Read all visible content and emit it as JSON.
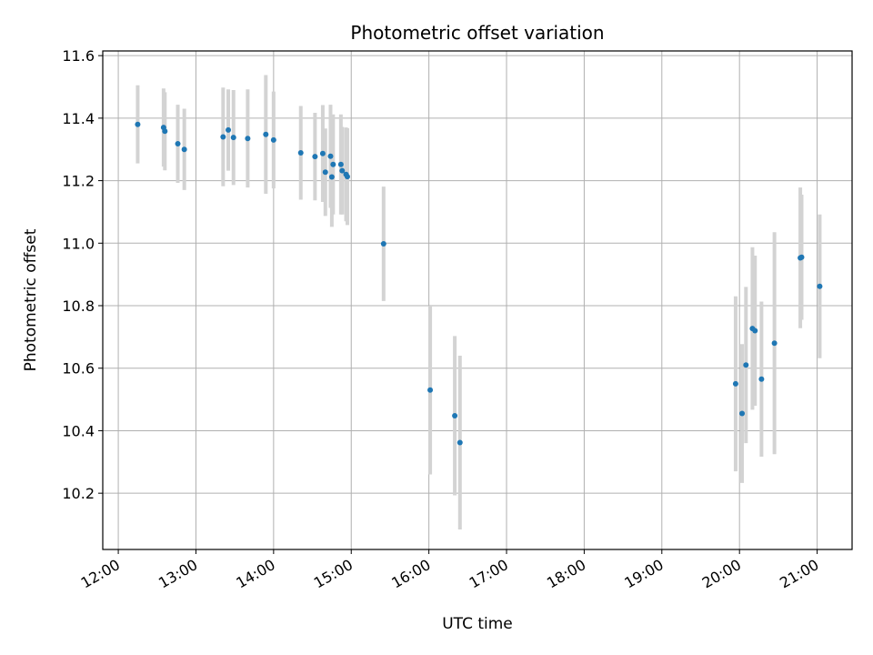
{
  "chart_data": {
    "type": "scatter",
    "title": "Photometric offset variation",
    "xlabel": "UTC time",
    "ylabel": "Photometric offset",
    "grid": true,
    "colors": {
      "point": "#1f77b4",
      "errorbar": "#d3d3d3",
      "grid": "#b0b0b0"
    },
    "xlim": [
      11.8,
      21.45
    ],
    "ylim": [
      10.02,
      11.615
    ],
    "xticks": [
      {
        "value": 12,
        "label": "12:00"
      },
      {
        "value": 13,
        "label": "13:00"
      },
      {
        "value": 14,
        "label": "14:00"
      },
      {
        "value": 15,
        "label": "15:00"
      },
      {
        "value": 16,
        "label": "16:00"
      },
      {
        "value": 17,
        "label": "17:00"
      },
      {
        "value": 18,
        "label": "18:00"
      },
      {
        "value": 19,
        "label": "19:00"
      },
      {
        "value": 20,
        "label": "20:00"
      },
      {
        "value": 21,
        "label": "21:00"
      }
    ],
    "yticks": [
      {
        "value": 10.2,
        "label": "10.2"
      },
      {
        "value": 10.4,
        "label": "10.4"
      },
      {
        "value": 10.6,
        "label": "10.6"
      },
      {
        "value": 10.8,
        "label": "10.8"
      },
      {
        "value": 11.0,
        "label": "11.0"
      },
      {
        "value": 11.2,
        "label": "11.2"
      },
      {
        "value": 11.4,
        "label": "11.4"
      },
      {
        "value": 11.6,
        "label": "11.6"
      }
    ],
    "points": [
      {
        "time": "12:15",
        "y": 11.38,
        "err": 0.125
      },
      {
        "time": "12:35",
        "y": 11.37,
        "err": 0.125
      },
      {
        "time": "12:36",
        "y": 11.358,
        "err": 0.125
      },
      {
        "time": "12:46",
        "y": 11.318,
        "err": 0.125
      },
      {
        "time": "12:51",
        "y": 11.3,
        "err": 0.13
      },
      {
        "time": "13:21",
        "y": 11.34,
        "err": 0.158
      },
      {
        "time": "13:25",
        "y": 11.362,
        "err": 0.13
      },
      {
        "time": "13:29",
        "y": 11.338,
        "err": 0.152
      },
      {
        "time": "13:40",
        "y": 11.335,
        "err": 0.157
      },
      {
        "time": "13:54",
        "y": 11.348,
        "err": 0.19
      },
      {
        "time": "14:00",
        "y": 11.33,
        "err": 0.155
      },
      {
        "time": "14:21",
        "y": 11.289,
        "err": 0.15
      },
      {
        "time": "14:32",
        "y": 11.277,
        "err": 0.14
      },
      {
        "time": "14:38",
        "y": 11.287,
        "err": 0.155
      },
      {
        "time": "14:40",
        "y": 11.227,
        "err": 0.14
      },
      {
        "time": "14:44",
        "y": 11.278,
        "err": 0.165
      },
      {
        "time": "14:45",
        "y": 11.212,
        "err": 0.16
      },
      {
        "time": "14:46",
        "y": 11.252,
        "err": 0.16
      },
      {
        "time": "14:52",
        "y": 11.252,
        "err": 0.16
      },
      {
        "time": "14:53",
        "y": 11.232,
        "err": 0.14
      },
      {
        "time": "14:56",
        "y": 11.22,
        "err": 0.15
      },
      {
        "time": "14:57",
        "y": 11.213,
        "err": 0.155
      },
      {
        "time": "15:25",
        "y": 10.998,
        "err": 0.183
      },
      {
        "time": "16:01",
        "y": 10.53,
        "err": 0.27
      },
      {
        "time": "16:20",
        "y": 10.448,
        "err": 0.255
      },
      {
        "time": "16:24",
        "y": 10.362,
        "err": 0.278
      },
      {
        "time": "19:57",
        "y": 10.55,
        "err": 0.28
      },
      {
        "time": "20:02",
        "y": 10.455,
        "err": 0.222
      },
      {
        "time": "20:05",
        "y": 10.61,
        "err": 0.25
      },
      {
        "time": "20:10",
        "y": 10.727,
        "err": 0.26
      },
      {
        "time": "20:12",
        "y": 10.72,
        "err": 0.24
      },
      {
        "time": "20:17",
        "y": 10.565,
        "err": 0.248
      },
      {
        "time": "20:27",
        "y": 10.68,
        "err": 0.355
      },
      {
        "time": "20:47",
        "y": 10.953,
        "err": 0.225
      },
      {
        "time": "20:48",
        "y": 10.955,
        "err": 0.2
      },
      {
        "time": "21:02",
        "y": 10.862,
        "err": 0.23
      }
    ]
  }
}
